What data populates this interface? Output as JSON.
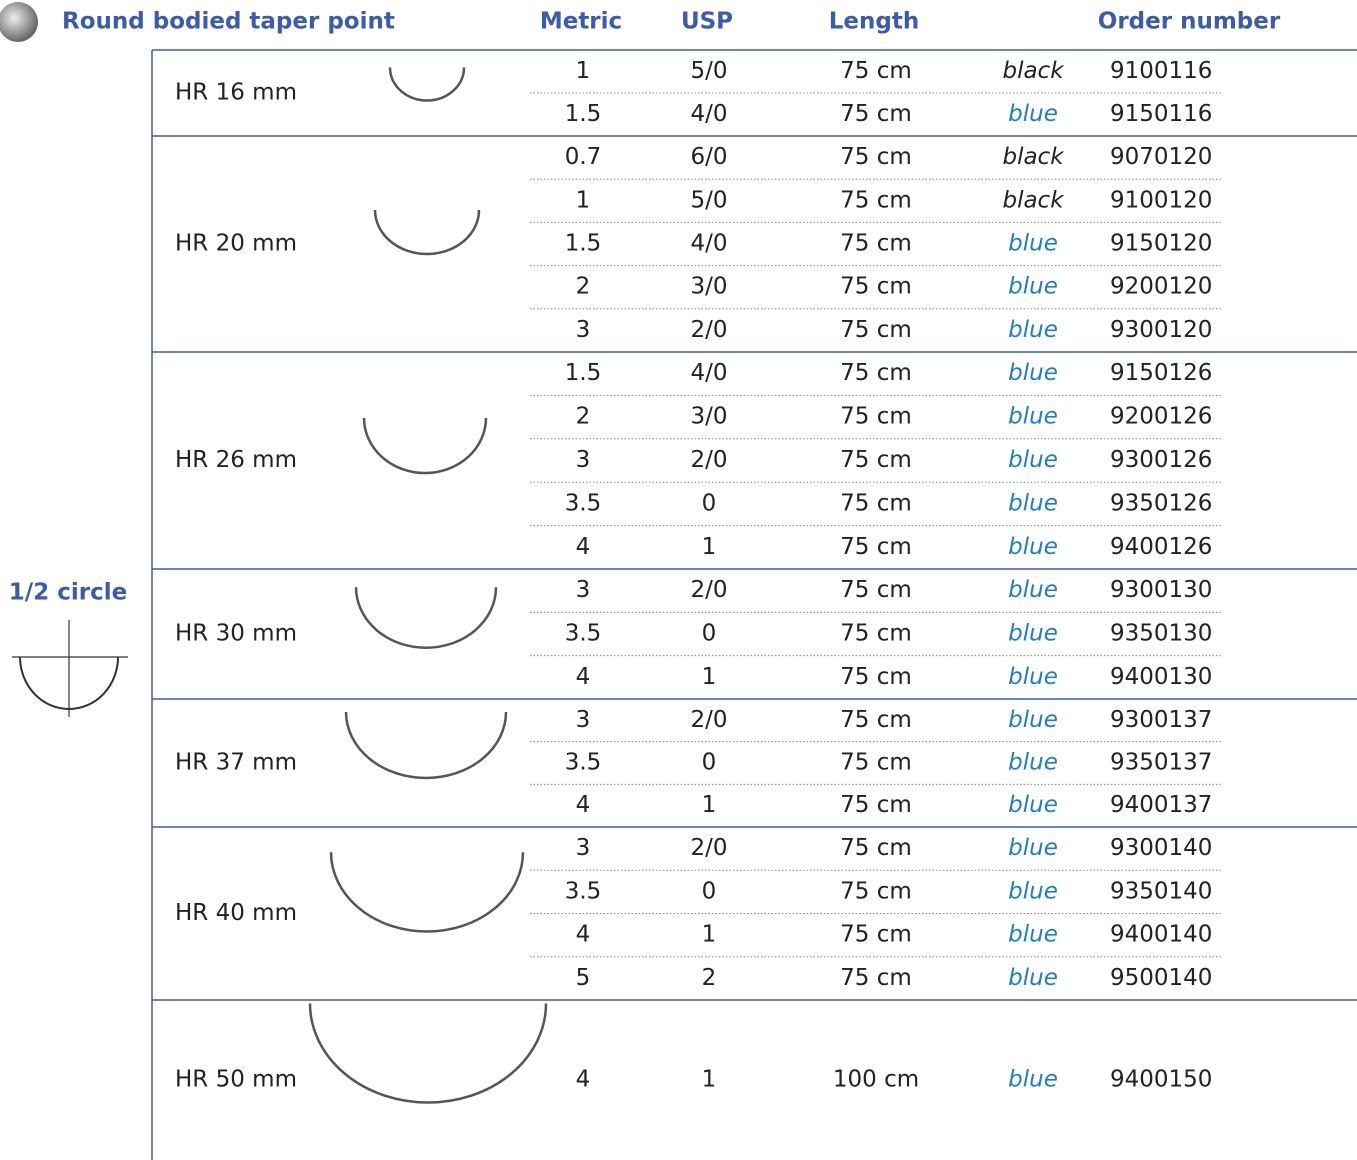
{
  "header": {
    "title": "Round bodied taper point",
    "columns": [
      "Metric",
      "USP",
      "Length",
      "Order number"
    ]
  },
  "side_label": "1/2 circle",
  "groups": [
    {
      "name": "HR 16 mm",
      "rows": [
        [
          "1",
          "5/0",
          "75 cm",
          "black",
          "9100116"
        ],
        [
          "1.5",
          "4/0",
          "75 cm",
          "blue",
          "9150116"
        ]
      ]
    },
    {
      "name": "HR 20 mm",
      "rows": [
        [
          "0.7",
          "6/0",
          "75 cm",
          "black",
          "9070120"
        ],
        [
          "1",
          "5/0",
          "75 cm",
          "black",
          "9100120"
        ],
        [
          "1.5",
          "4/0",
          "75 cm",
          "blue",
          "9150120"
        ],
        [
          "2",
          "3/0",
          "75 cm",
          "blue",
          "9200120"
        ],
        [
          "3",
          "2/0",
          "75 cm",
          "blue",
          "9300120"
        ]
      ]
    },
    {
      "name": "HR 26 mm",
      "rows": [
        [
          "1.5",
          "4/0",
          "75 cm",
          "blue",
          "9150126"
        ],
        [
          "2",
          "3/0",
          "75 cm",
          "blue",
          "9200126"
        ],
        [
          "3",
          "2/0",
          "75 cm",
          "blue",
          "9300126"
        ],
        [
          "3.5",
          "0",
          "75 cm",
          "blue",
          "9350126"
        ],
        [
          "4",
          "1",
          "75 cm",
          "blue",
          "9400126"
        ]
      ]
    },
    {
      "name": "HR 30 mm",
      "rows": [
        [
          "3",
          "2/0",
          "75 cm",
          "blue",
          "9300130"
        ],
        [
          "3.5",
          "0",
          "75 cm",
          "blue",
          "9350130"
        ],
        [
          "4",
          "1",
          "75 cm",
          "blue",
          "9400130"
        ]
      ]
    },
    {
      "name": "HR 37 mm",
      "rows": [
        [
          "3",
          "2/0",
          "75 cm",
          "blue",
          "9300137"
        ],
        [
          "3.5",
          "0",
          "75 cm",
          "blue",
          "9350137"
        ],
        [
          "4",
          "1",
          "75 cm",
          "blue",
          "9400137"
        ]
      ]
    },
    {
      "name": "HR 40 mm",
      "rows": [
        [
          "3",
          "2/0",
          "75 cm",
          "blue",
          "9300140"
        ],
        [
          "3.5",
          "0",
          "75 cm",
          "blue",
          "9350140"
        ],
        [
          "4",
          "1",
          "75 cm",
          "blue",
          "9400140"
        ],
        [
          "5",
          "2",
          "75 cm",
          "blue",
          "9500140"
        ]
      ]
    },
    {
      "name": "HR 50 mm",
      "rows": [
        [
          "4",
          "1",
          "100 cm",
          "blue",
          "9400150"
        ]
      ]
    }
  ]
}
